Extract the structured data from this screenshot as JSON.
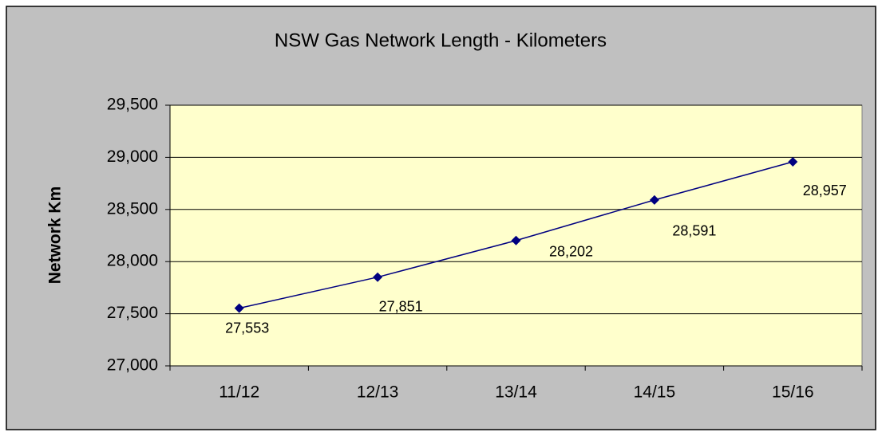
{
  "chart_data": {
    "type": "line",
    "title": "NSW Gas Network Length - Kilometers",
    "y_label": "Network Km",
    "categories": [
      "11/12",
      "12/13",
      "13/14",
      "14/15",
      "15/16"
    ],
    "series": [
      {
        "name": "Network Km",
        "color": "#000080",
        "values": [
          27553,
          27851,
          28202,
          28591,
          28957
        ],
        "value_labels": [
          "27,553",
          "27,851",
          "28,202",
          "28,591",
          "28,957"
        ]
      }
    ],
    "ylim": [
      27000,
      29500
    ],
    "yticks": [
      {
        "value": 27000,
        "label": "27,000"
      },
      {
        "value": 27500,
        "label": "27,500"
      },
      {
        "value": 28000,
        "label": "28,000"
      },
      {
        "value": 28500,
        "label": "28,500"
      },
      {
        "value": 29000,
        "label": "29,000"
      },
      {
        "value": 29500,
        "label": "29,500"
      }
    ],
    "grid": true
  }
}
